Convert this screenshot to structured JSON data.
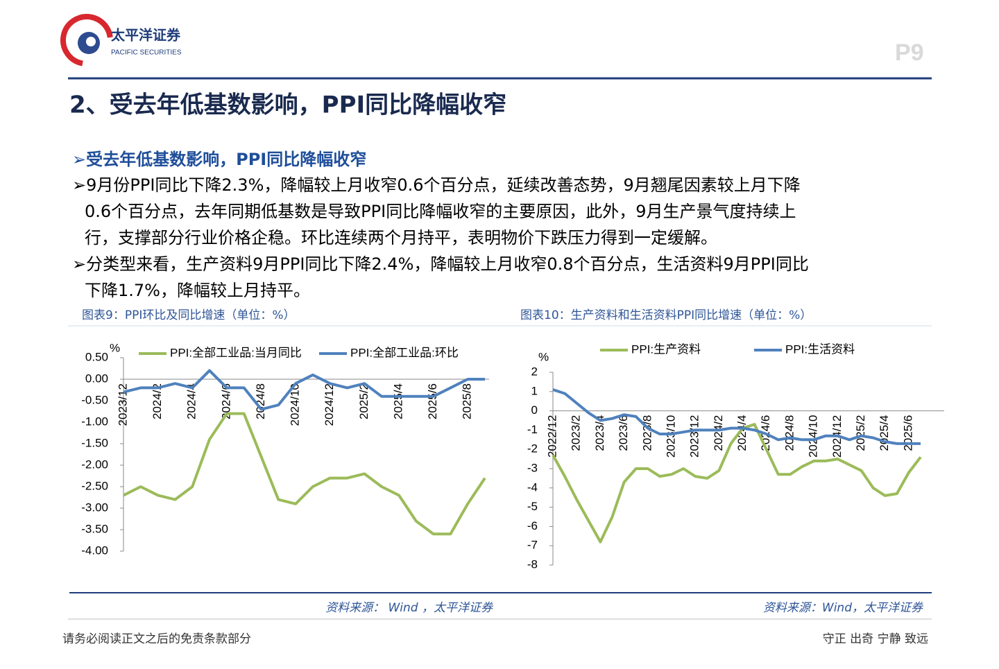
{
  "header": {
    "brand": "太平洋证券",
    "brand_en": "PACIFIC SECURITIES",
    "page": "P9"
  },
  "title": "2、受去年低基数影响，PPI同比降幅收窄",
  "heading": "➢受去年低基数影响，PPI同比降幅收窄",
  "paragraphs": [
    {
      "lines": [
        "➢9月份PPI同比下降2.3%，降幅较上月收窄0.6个百分点，延续改善态势，9月翘尾因素较上月下降",
        "0.6个百分点，去年同期低基数是导致PPI同比降幅收窄的主要原因，此外，9月生产景气度持续上",
        "行，支撑部分行业价格企稳。环比连续两个月持平，表明物价下跌压力得到一定缓解。"
      ]
    },
    {
      "lines": [
        "➢分类型来看，生产资料9月PPI同比下降2.4%，降幅较上月收窄0.8个百分点，生活资料9月PPI同比",
        "下降1.7%，降幅较上月持平。"
      ]
    }
  ],
  "chart_data": [
    {
      "type": "line",
      "title": "图表9：PPI环比及同比增速（单位：%）",
      "source": "资料来源： Wind ，太平洋证券",
      "y_unit": "%",
      "categories": [
        "2023/12",
        null,
        "2024/2",
        null,
        "2024/4",
        null,
        "2024/6",
        null,
        "2024/8",
        null,
        "2024/10",
        null,
        "2024/12",
        null,
        "2025/2",
        null,
        "2025/4",
        null,
        "2025/6",
        null,
        "2025/8",
        null
      ],
      "series": [
        {
          "name": "PPI:全部工业品:当月同比",
          "color": "#9bbb59",
          "values": [
            -2.7,
            -2.5,
            -2.7,
            -2.8,
            -2.5,
            -1.4,
            -0.8,
            -0.8,
            -1.8,
            -2.8,
            -2.9,
            -2.5,
            -2.3,
            -2.3,
            -2.2,
            -2.5,
            -2.7,
            -3.3,
            -3.6,
            -3.6,
            -2.9,
            -2.3
          ]
        },
        {
          "name": "PPI:全部工业品:环比",
          "color": "#4f81bd",
          "values": [
            -0.3,
            -0.2,
            -0.2,
            -0.1,
            -0.2,
            0.2,
            -0.2,
            -0.2,
            -0.7,
            -0.6,
            -0.1,
            0.1,
            -0.1,
            -0.2,
            -0.1,
            -0.4,
            -0.4,
            -0.4,
            -0.4,
            -0.2,
            0.0,
            0.0
          ]
        }
      ],
      "ylim": [
        -4,
        0.5
      ],
      "yticks": [
        {
          "value": 0.5,
          "label": "0.50"
        },
        {
          "value": 0,
          "label": "0.00"
        },
        {
          "value": -0.5,
          "label": "-0.50"
        },
        {
          "value": -1,
          "label": "-1.00"
        },
        {
          "value": -1.5,
          "label": "-1.50"
        },
        {
          "value": -2,
          "label": "-2.00"
        },
        {
          "value": -2.5,
          "label": "-2.50"
        },
        {
          "value": -3,
          "label": "-3.00"
        },
        {
          "value": -3.5,
          "label": "-3.50"
        },
        {
          "value": -4,
          "label": "-4.00"
        }
      ]
    },
    {
      "type": "line",
      "title": "图表10：生产资料和生活资料PPI同比增速（单位：%）",
      "source": "资料来源：Wind，太平洋证券",
      "y_unit": "%",
      "categories": [
        "2022/12",
        null,
        "2023/2",
        null,
        "2023/4",
        null,
        "2023/6",
        null,
        "2023/8",
        null,
        "2023/10",
        null,
        "2023/12",
        null,
        "2024/2",
        null,
        "2024/4",
        null,
        "2024/6",
        null,
        "2024/8",
        null,
        "2024/10",
        null,
        "2024/12",
        null,
        "2025/2",
        null,
        "2025/4",
        null,
        "2025/6",
        null
      ],
      "series": [
        {
          "name": "PPI:生产资料",
          "color": "#9bbb59",
          "values": [
            -2.3,
            -3.4,
            -4.6,
            -5.7,
            -6.8,
            -5.5,
            -3.7,
            -3.0,
            -3.0,
            -3.4,
            -3.3,
            -3.0,
            -3.4,
            -3.5,
            -3.1,
            -1.7,
            -0.9,
            -0.7,
            -2.0,
            -3.3,
            -3.3,
            -2.9,
            -2.6,
            -2.6,
            -2.5,
            -2.8,
            -3.1,
            -4.0,
            -4.4,
            -4.3,
            -3.2,
            -2.4
          ]
        },
        {
          "name": "PPI:生活资料",
          "color": "#4f81bd",
          "values": [
            1.1,
            0.9,
            0.4,
            -0.1,
            -0.5,
            -0.4,
            -0.2,
            -0.3,
            -0.9,
            -1.2,
            -1.2,
            -1.1,
            -1.0,
            -1.0,
            -1.0,
            -0.9,
            -0.9,
            -1.0,
            -1.2,
            -1.5,
            -1.4,
            -1.5,
            -1.5,
            -1.3,
            -1.3,
            -1.5,
            -1.3,
            -1.4,
            -1.6,
            -1.7,
            -1.7,
            -1.7
          ]
        }
      ],
      "ylim": [
        -8,
        2
      ],
      "yticks": [
        2,
        1,
        0,
        -1,
        -2,
        -3,
        -4,
        -5,
        -6,
        -7,
        -8
      ]
    }
  ],
  "footer": {
    "left": "请务必阅读正文之后的免责条款部分",
    "right": "守正 出奇 宁静 致远"
  }
}
